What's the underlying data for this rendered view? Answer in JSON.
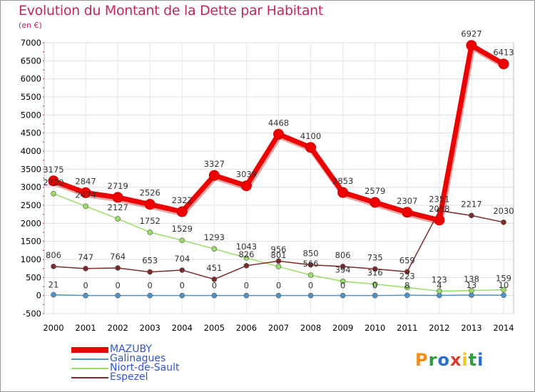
{
  "title": "Evolution du Montant de la Dette par Habitant",
  "subtitle": "(en €)",
  "logo": {
    "letters": [
      "P",
      "r",
      "o",
      "x",
      "i",
      "t",
      "i"
    ],
    "colors": [
      "#f08c1a",
      "#2e9e3c",
      "#2a6fc9",
      "#e03a2f",
      "#f2c318",
      "#2e9e3c",
      "#2a6fc9"
    ]
  },
  "chart_data": {
    "type": "line",
    "title": "Evolution du Montant de la Dette par Habitant",
    "ylabel": "(en €)",
    "x": [
      "2000",
      "2001",
      "2002",
      "2003",
      "2004",
      "2005",
      "2006",
      "2007",
      "2008",
      "2009",
      "2010",
      "2011",
      "2012",
      "2013",
      "2014"
    ],
    "ylim": [
      -500,
      7000
    ],
    "yticks": [
      -500,
      0,
      500,
      1000,
      1500,
      2000,
      2500,
      3000,
      3500,
      4000,
      4500,
      5000,
      5500,
      6000,
      6500,
      7000
    ],
    "grid": true,
    "legend_position": "bottom-left",
    "series": [
      {
        "name": "MAZUBY",
        "color": "#ee0000",
        "width": "thick",
        "values": [
          3175,
          2847,
          2719,
          2526,
          2322,
          3327,
          3039,
          4468,
          4100,
          2853,
          2579,
          2307,
          2088,
          6927,
          6413
        ],
        "labels": [
          "3175",
          "2847",
          "2719",
          "2526",
          "2322",
          "3327",
          "3039",
          "4468",
          "4100",
          "2853",
          "2579",
          "2307",
          "2088",
          "6927",
          "6413"
        ]
      },
      {
        "name": "Galinagues",
        "color": "#4f94c9",
        "width": "thin",
        "values": [
          21,
          0,
          0,
          0,
          0,
          0,
          0,
          0,
          0,
          0,
          0,
          8,
          4,
          13,
          10
        ],
        "labels": [
          "21",
          "0",
          "0",
          "0",
          "0",
          "0",
          "0",
          "0",
          "0",
          "0",
          "0",
          "8",
          "4",
          "13",
          "10"
        ]
      },
      {
        "name": "Niort-de-Sault",
        "color": "#99dd66",
        "width": "thin",
        "values": [
          2820,
          2474,
          2127,
          1752,
          1529,
          1293,
          1043,
          801,
          566,
          394,
          316,
          223,
          123,
          138,
          159
        ],
        "labels": [
          "2820",
          "2474",
          "2127",
          "1752",
          "1529",
          "1293",
          "1043",
          "801",
          "566",
          "394",
          "316",
          "223",
          "123",
          "138",
          "159"
        ]
      },
      {
        "name": "Espezel",
        "color": "#7a2a2a",
        "width": "thin",
        "values": [
          806,
          747,
          764,
          653,
          704,
          451,
          826,
          956,
          850,
          806,
          735,
          659,
          2351,
          2217,
          2030
        ],
        "labels": [
          "806",
          "747",
          "764",
          "653",
          "704",
          "451",
          "826",
          "956",
          "850",
          "806",
          "735",
          "659",
          "2351",
          "2217",
          "2030"
        ]
      }
    ]
  }
}
